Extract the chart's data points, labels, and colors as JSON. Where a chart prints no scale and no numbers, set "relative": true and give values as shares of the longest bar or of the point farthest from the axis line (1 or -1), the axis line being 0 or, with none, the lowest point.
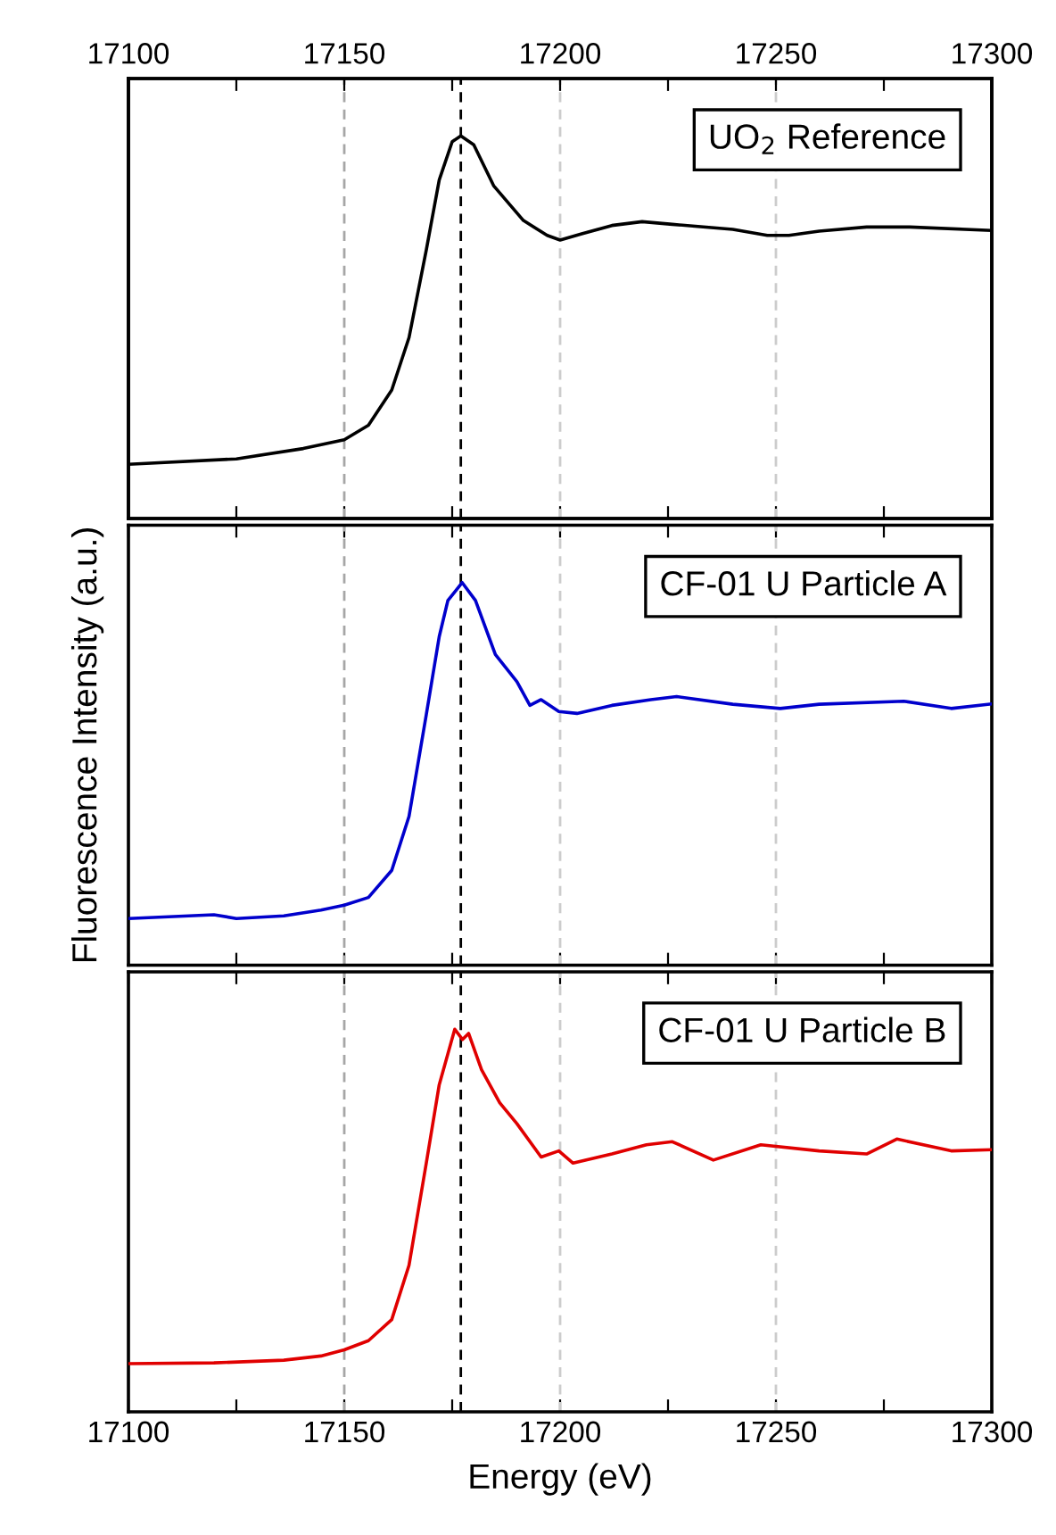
{
  "chart_data": [
    {
      "type": "line",
      "relative": true,
      "xlim": [
        17100,
        17300
      ],
      "x2lim": [
        17100,
        17300
      ],
      "xticks": [
        {
          "value": 17100,
          "label": null
        },
        {
          "value": 17125,
          "label": null
        },
        {
          "value": 17150,
          "label": null
        },
        {
          "value": 17175,
          "label": null
        },
        {
          "value": 17200,
          "label": null
        },
        {
          "value": 17225,
          "label": null
        },
        {
          "value": 17250,
          "label": null
        },
        {
          "value": 17275,
          "label": null
        },
        {
          "value": 17300,
          "label": null
        }
      ],
      "x2ticks": [
        17100,
        {
          "value": 17125,
          "label": null
        },
        17150,
        {
          "value": 17175,
          "label": null
        },
        17200,
        {
          "value": 17225,
          "label": null
        },
        17250,
        {
          "value": 17275,
          "label": null
        },
        17300
      ],
      "tick_labels": false,
      "legend": "top right",
      "grid": false,
      "marker": "none",
      "line_style": "solid",
      "ref_lines": [
        {
          "axis": "x",
          "value": 17150,
          "color": "#a6a6a6",
          "line_style": "dashed"
        },
        {
          "axis": "x",
          "value": 17200,
          "color": "#cccccc",
          "line_style": "dashed"
        },
        {
          "axis": "x",
          "value": 17250,
          "color": "#cccccc",
          "line_style": "dashed"
        },
        {
          "axis": "x",
          "value": 17177,
          "color": "#000000",
          "line_style": "dashed"
        }
      ],
      "series": [
        {
          "name": "UO$_{2}$ Reference",
          "color": "#000000",
          "x": [
            17100,
            17125,
            17140.5,
            17150,
            17155.6,
            17161,
            17165,
            17169,
            17172,
            17175,
            17177,
            17180,
            17184.6,
            17191.5,
            17197,
            17200,
            17205,
            17212,
            17219,
            17226,
            17240,
            17248,
            17253,
            17260,
            17271,
            17281,
            17300
          ],
          "values": [
            0.142,
            0.156,
            0.183,
            0.206,
            0.244,
            0.336,
            0.473,
            0.702,
            0.885,
            0.985,
            1,
            0.977,
            0.87,
            0.779,
            0.74,
            0.728,
            0.744,
            0.766,
            0.776,
            0.769,
            0.756,
            0.74,
            0.74,
            0.751,
            0.762,
            0.762,
            0.753
          ]
        }
      ]
    },
    {
      "type": "line",
      "relative": true,
      "xlim": [
        17100,
        17300
      ],
      "xticks": [
        {
          "value": 17100,
          "label": null
        },
        {
          "value": 17125,
          "label": null
        },
        {
          "value": 17150,
          "label": null
        },
        {
          "value": 17175,
          "label": null
        },
        {
          "value": 17200,
          "label": null
        },
        {
          "value": 17225,
          "label": null
        },
        {
          "value": 17250,
          "label": null
        },
        {
          "value": 17275,
          "label": null
        },
        {
          "value": 17300,
          "label": null
        }
      ],
      "ylabel": "Fluorescence Intensity (a.u.)",
      "tick_labels": false,
      "legend": "top right",
      "grid": false,
      "marker": "none",
      "line_style": "solid",
      "ref_lines": [
        {
          "axis": "x",
          "value": 17150,
          "color": "#a6a6a6",
          "line_style": "dashed"
        },
        {
          "axis": "x",
          "value": 17200,
          "color": "#cccccc",
          "line_style": "dashed"
        },
        {
          "axis": "x",
          "value": 17250,
          "color": "#cccccc",
          "line_style": "dashed"
        },
        {
          "axis": "x",
          "value": 17177,
          "color": "#000000",
          "line_style": "dashed"
        }
      ],
      "series": [
        {
          "name": "CF-01 U Particle A",
          "color": "#0000cc",
          "x": [
            17100,
            17119.8,
            17125,
            17136,
            17144.6,
            17150,
            17155.6,
            17161,
            17165,
            17169,
            17172,
            17174,
            17177.3,
            17180.4,
            17185,
            17190,
            17193,
            17195.6,
            17199.7,
            17203.9,
            17212,
            17221,
            17227,
            17240,
            17251,
            17260,
            17279.6,
            17290.6,
            17300
          ],
          "values": [
            0.122,
            0.132,
            0.122,
            0.129,
            0.144,
            0.157,
            0.177,
            0.248,
            0.389,
            0.655,
            0.859,
            0.953,
            1,
            0.953,
            0.812,
            0.741,
            0.679,
            0.694,
            0.663,
            0.658,
            0.679,
            0.694,
            0.702,
            0.682,
            0.671,
            0.682,
            0.69,
            0.671,
            0.683
          ]
        }
      ]
    },
    {
      "type": "line",
      "relative": true,
      "xlim": [
        17100,
        17300
      ],
      "xticks": [
        17100,
        {
          "value": 17125,
          "label": null
        },
        17150,
        {
          "value": 17175,
          "label": null
        },
        17200,
        {
          "value": 17225,
          "label": null
        },
        17250,
        {
          "value": 17275,
          "label": null
        },
        17300
      ],
      "xlabel": "Energy (eV)",
      "tick_labels": "x",
      "legend": "top right",
      "grid": false,
      "marker": "none",
      "line_style": "solid",
      "ref_lines": [
        {
          "axis": "x",
          "value": 17150,
          "color": "#a6a6a6",
          "line_style": "dashed"
        },
        {
          "axis": "x",
          "value": 17200,
          "color": "#cccccc",
          "line_style": "dashed"
        },
        {
          "axis": "x",
          "value": 17250,
          "color": "#cccccc",
          "line_style": "dashed"
        },
        {
          "axis": "x",
          "value": 17177,
          "color": "#000000",
          "line_style": "dashed"
        }
      ],
      "series": [
        {
          "name": "CF-01 U Particle B",
          "color": "#e00000",
          "x": [
            17100,
            17119.8,
            17136,
            17144.6,
            17150,
            17155.6,
            17161,
            17165,
            17169,
            17172,
            17175.6,
            17177.4,
            17178.8,
            17181.8,
            17186,
            17190,
            17195.6,
            17199.7,
            17203,
            17212,
            17220,
            17226,
            17235.5,
            17246.5,
            17260,
            17271,
            17278,
            17290.6,
            17300
          ],
          "values": [
            0.126,
            0.128,
            0.135,
            0.146,
            0.162,
            0.186,
            0.241,
            0.383,
            0.65,
            0.855,
            1,
            0.973,
            0.989,
            0.894,
            0.808,
            0.753,
            0.666,
            0.682,
            0.65,
            0.674,
            0.698,
            0.706,
            0.658,
            0.698,
            0.682,
            0.674,
            0.713,
            0.682,
            0.685
          ]
        }
      ]
    }
  ]
}
